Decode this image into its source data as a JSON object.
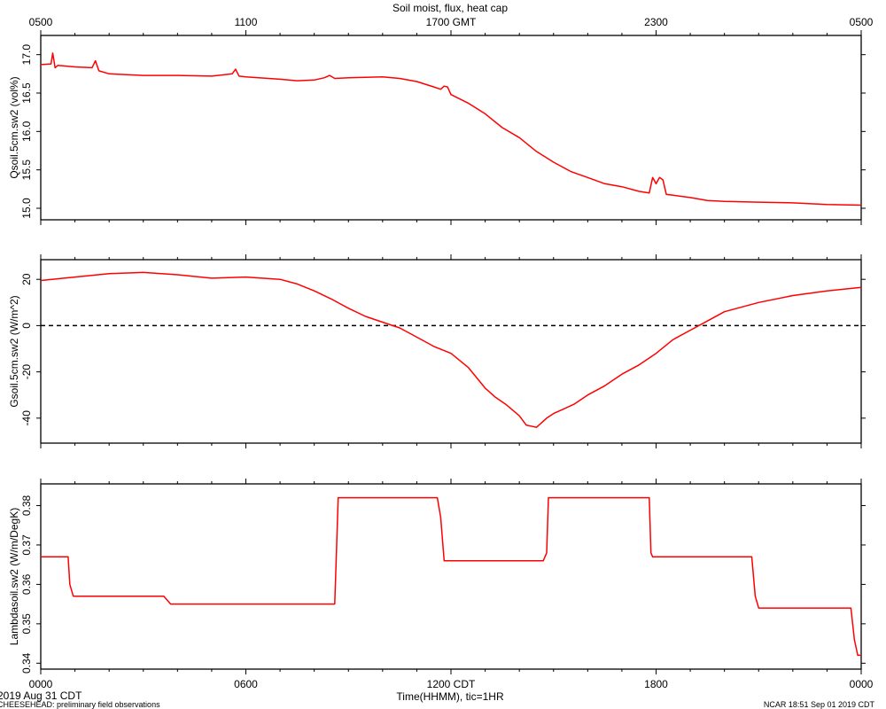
{
  "chart_data": {
    "type": "line",
    "title": "Soil moist, flux, heat cap",
    "top_axis_ticks": [
      "0500",
      "1100",
      "1700 GMT",
      "2300",
      "0500"
    ],
    "bottom_axis_ticks": [
      "0000",
      "0600",
      "1200 CDT",
      "1800",
      "0000"
    ],
    "xlabel": "Time(HHMM), tic=1HR",
    "x_unit": "hours (CDT) from 0000 Aug 31",
    "xlim": [
      0,
      24
    ],
    "line_color": "#ff0000",
    "panels": [
      {
        "ylabel": "Qsoil.5cm.sw2 (vol%)",
        "ylim": [
          14.85,
          17.25
        ],
        "yticks": [
          "15.0",
          "15.5",
          "16.0",
          "16.5",
          "17.0"
        ],
        "ytick_values": [
          15.0,
          15.5,
          16.0,
          16.5,
          17.0
        ],
        "zero_line": false,
        "series": [
          {
            "x": [
              0,
              0.3,
              0.35,
              0.42,
              0.5,
              1.0,
              1.5,
              1.6,
              1.7,
              2.0,
              3.0,
              4.0,
              5.0,
              5.6,
              5.7,
              5.8,
              6.0,
              7.0,
              7.5,
              8.0,
              8.3,
              8.45,
              8.6,
              9.0,
              10.0,
              10.5,
              11.0,
              11.5,
              11.7,
              11.8,
              11.9,
              12.0,
              12.5,
              13.0,
              13.5,
              14.0,
              14.5,
              15.0,
              15.5,
              16.0,
              16.5,
              17.0,
              17.5,
              17.8,
              17.9,
              18.0,
              18.1,
              18.2,
              18.3,
              18.5,
              19.0,
              19.5,
              20.0,
              21.0,
              22.0,
              23.0,
              24.0
            ],
            "y": [
              16.87,
              16.88,
              17.02,
              16.83,
              16.86,
              16.84,
              16.83,
              16.92,
              16.79,
              16.75,
              16.73,
              16.73,
              16.72,
              16.75,
              16.81,
              16.72,
              16.71,
              16.68,
              16.66,
              16.67,
              16.7,
              16.73,
              16.69,
              16.7,
              16.71,
              16.69,
              16.65,
              16.58,
              16.55,
              16.59,
              16.58,
              16.48,
              16.37,
              16.23,
              16.05,
              15.92,
              15.74,
              15.6,
              15.48,
              15.4,
              15.32,
              15.28,
              15.22,
              15.2,
              15.4,
              15.32,
              15.4,
              15.37,
              15.18,
              15.17,
              15.14,
              15.1,
              15.09,
              15.08,
              15.07,
              15.05,
              15.04
            ]
          }
        ]
      },
      {
        "ylabel": "Gsoil.5cm.sw2 (W/m^2)",
        "ylim": [
          -50.8,
          28.5
        ],
        "yticks": [
          "-40",
          "-20",
          "0",
          "20"
        ],
        "ytick_values": [
          -40,
          -20,
          0,
          20
        ],
        "zero_line": true,
        "series": [
          {
            "x": [
              0,
              1,
              2,
              3,
              4,
              5,
              6,
              7,
              7.5,
              8,
              8.5,
              9,
              9.5,
              10,
              10.5,
              11,
              11.5,
              12,
              12.5,
              13,
              13.3,
              13.6,
              14,
              14.2,
              14.5,
              14.8,
              15,
              15.3,
              15.6,
              16,
              16.5,
              17,
              17.5,
              18,
              18.5,
              19,
              19.5,
              20,
              21,
              22,
              23,
              24
            ],
            "y": [
              19.5,
              21,
              22.5,
              23,
              22,
              20.5,
              21,
              20,
              18,
              15,
              11.5,
              7.5,
              4,
              1.5,
              -1,
              -5,
              -9,
              -12,
              -18,
              -27,
              -31,
              -34,
              -39,
              -43,
              -44,
              -40,
              -38,
              -36,
              -34,
              -30,
              -26,
              -21,
              -17,
              -12,
              -6,
              -2,
              2,
              6,
              10,
              13,
              15,
              16.5
            ]
          }
        ]
      },
      {
        "ylabel": "Lambdasoil.sw2 (W/m/DegK)",
        "ylim": [
          0.3385,
          0.3855
        ],
        "yticks": [
          "0.34",
          "0.35",
          "0.36",
          "0.37",
          "0.38"
        ],
        "ytick_values": [
          0.34,
          0.35,
          0.36,
          0.37,
          0.38
        ],
        "zero_line": false,
        "series": [
          {
            "x": [
              0,
              0.8,
              0.85,
              0.95,
              1.0,
              3.6,
              3.7,
              3.8,
              8.6,
              8.65,
              8.7,
              11.6,
              11.7,
              11.8,
              14.7,
              14.8,
              14.85,
              17.8,
              17.85,
              17.9,
              20.8,
              20.9,
              21.0,
              23.7,
              23.8,
              23.9,
              24.0
            ],
            "y": [
              0.367,
              0.367,
              0.36,
              0.357,
              0.357,
              0.357,
              0.356,
              0.355,
              0.355,
              0.368,
              0.382,
              0.382,
              0.377,
              0.366,
              0.366,
              0.368,
              0.382,
              0.382,
              0.368,
              0.367,
              0.367,
              0.357,
              0.354,
              0.354,
              0.346,
              0.342,
              0.342
            ]
          }
        ]
      }
    ]
  },
  "footer": {
    "left_date": "2019 Aug 31 CDT",
    "left_note": "CHEESEHEAD: preliminary field observations",
    "right_note": "NCAR 18:51 Sep 01 2019 CDT"
  }
}
